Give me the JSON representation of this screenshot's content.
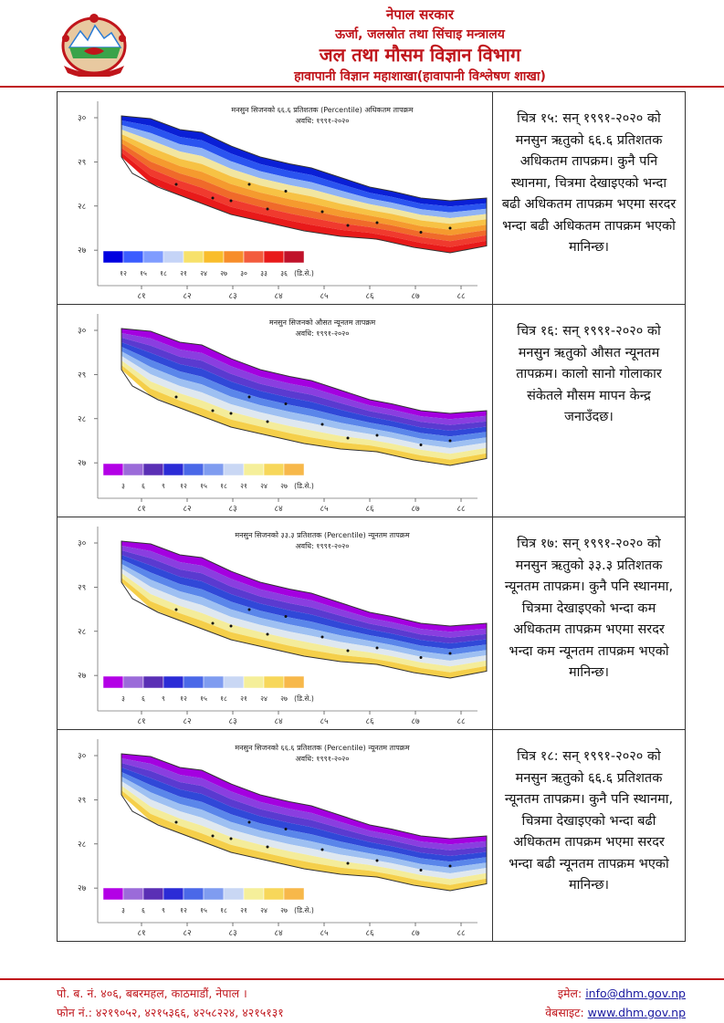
{
  "header": {
    "line1": "नेपाल सरकार",
    "line2": "ऊर्जा, जलस्रोत तथा सिंचाइ मन्त्रालय",
    "line3": "जल तथा मौसम विज्ञान विभाग",
    "line4": "हावापानी विज्ञान महाशाखा(हावापानी विश्लेषण शाखा)"
  },
  "colors": {
    "accent": "#c0151b",
    "link": "#1a1aa0"
  },
  "axes": {
    "y_ticks": [
      "३०",
      "२९",
      "२८",
      "२७"
    ],
    "x_ticks": [
      "८१",
      "८२",
      "८३",
      "८४",
      "८५",
      "८६",
      "८७",
      "८८"
    ]
  },
  "rows": [
    {
      "map_title": "मनसुन सिजनको ६६.६ प्रतिशतक (Percentile) अधिकतम तापक्रम",
      "map_period": "अवधि: १९९१-२०२०",
      "palette": "warm",
      "legend_colors": [
        "#0000e0",
        "#3a5cff",
        "#7f9cff",
        "#c5d4f7",
        "#f7e16a",
        "#f9bd2b",
        "#f78d2a",
        "#f35b3d",
        "#e81a1a",
        "#c0122a"
      ],
      "legend_labels": [
        "१२",
        "१५",
        "१८",
        "२१",
        "२४",
        "२७",
        "३०",
        "३३",
        "३६",
        "(डि.से.)"
      ],
      "caption": "चित्र १५: सन् १९९१-२०२० को मनसुन ऋतुको ६६.६ प्रतिशतक अधिकतम तापक्रम। कुनै पनि स्थानमा, चित्रमा देखाइएको भन्दा बढी अधिकतम तापक्रम भएमा सरदर भन्दा बढी अधिकतम तापक्रम भएको मानिन्छ।"
    },
    {
      "map_title": "मनसुन सिजनको औसत न्यूनतम तापक्रम",
      "map_period": "अवधि: १९९१-२०२०",
      "palette": "cool",
      "legend_colors": [
        "#b300e6",
        "#9b6bd9",
        "#5a2fb5",
        "#2b2bd6",
        "#4a68e8",
        "#7f9cf0",
        "#c9d7f4",
        "#f5ef9a",
        "#f7d75a",
        "#f7b84a"
      ],
      "legend_labels": [
        "३",
        "६",
        "९",
        "१२",
        "१५",
        "१८",
        "२१",
        "२४",
        "२७",
        "(डि.से.)"
      ],
      "caption": "चित्र १६: सन् १९९१-२०२० को मनसुन ऋतुको औसत न्यूनतम तापक्रम। कालो सानो गोलाकार संकेतले मौसम मापन केन्द्र जनाउँदछ।"
    },
    {
      "map_title": "मनसुन सिजनको ३३.३ प्रतिशतक (Percentile) न्यूनतम तापक्रम",
      "map_period": "अवधि: १९९१-२०२०",
      "palette": "cool",
      "legend_colors": [
        "#b300e6",
        "#9b6bd9",
        "#5a2fb5",
        "#2b2bd6",
        "#4a68e8",
        "#7f9cf0",
        "#c9d7f4",
        "#f5ef9a",
        "#f7d75a",
        "#f7b84a"
      ],
      "legend_labels": [
        "३",
        "६",
        "९",
        "१२",
        "१५",
        "१८",
        "२१",
        "२४",
        "२७",
        "(डि.से.)"
      ],
      "caption": "चित्र १७: सन् १९९१-२०२० को मनसुन ऋतुको ३३.३ प्रतिशतक न्यूनतम तापक्रम। कुनै पनि स्थानमा, चित्रमा देखाइएको भन्दा कम अधिकतम तापक्रम भएमा सरदर भन्दा कम न्यूनतम तापक्रम भएको मानिन्छ।"
    },
    {
      "map_title": "मनसुन सिजनको ६६.६ प्रतिशतक (Percentile) न्यूनतम तापक्रम",
      "map_period": "अवधि: १९९१-२०२०",
      "palette": "cool",
      "legend_colors": [
        "#b300e6",
        "#9b6bd9",
        "#5a2fb5",
        "#2b2bd6",
        "#4a68e8",
        "#7f9cf0",
        "#c9d7f4",
        "#f5ef9a",
        "#f7d75a",
        "#f7b84a"
      ],
      "legend_labels": [
        "३",
        "६",
        "९",
        "१२",
        "१५",
        "१८",
        "२१",
        "२४",
        "२७",
        "(डि.से.)"
      ],
      "caption": "चित्र १८: सन् १९९१-२०२० को मनसुन ऋतुको ६६.६ प्रतिशतक न्यूनतम तापक्रम। कुनै पनि स्थानमा, चित्रमा देखाइएको भन्दा बढी अधिकतम तापक्रम भएमा सरदर भन्दा बढी न्यूनतम तापक्रम भएको मानिन्छ।"
    }
  ],
  "footer": {
    "address": "पो. ब. नं. ४०६, बबरमहल, काठमाडौं, नेपाल ।",
    "phone": "फोन नं.: ४२१९०५२, ४२१५३६६, ४२५८२२४, ४२१५१३१",
    "email_label": "इमेल:",
    "email": "info@dhm.gov.np",
    "website_label": "वेबसाइट:",
    "website": "www.dhm.gov.np"
  }
}
